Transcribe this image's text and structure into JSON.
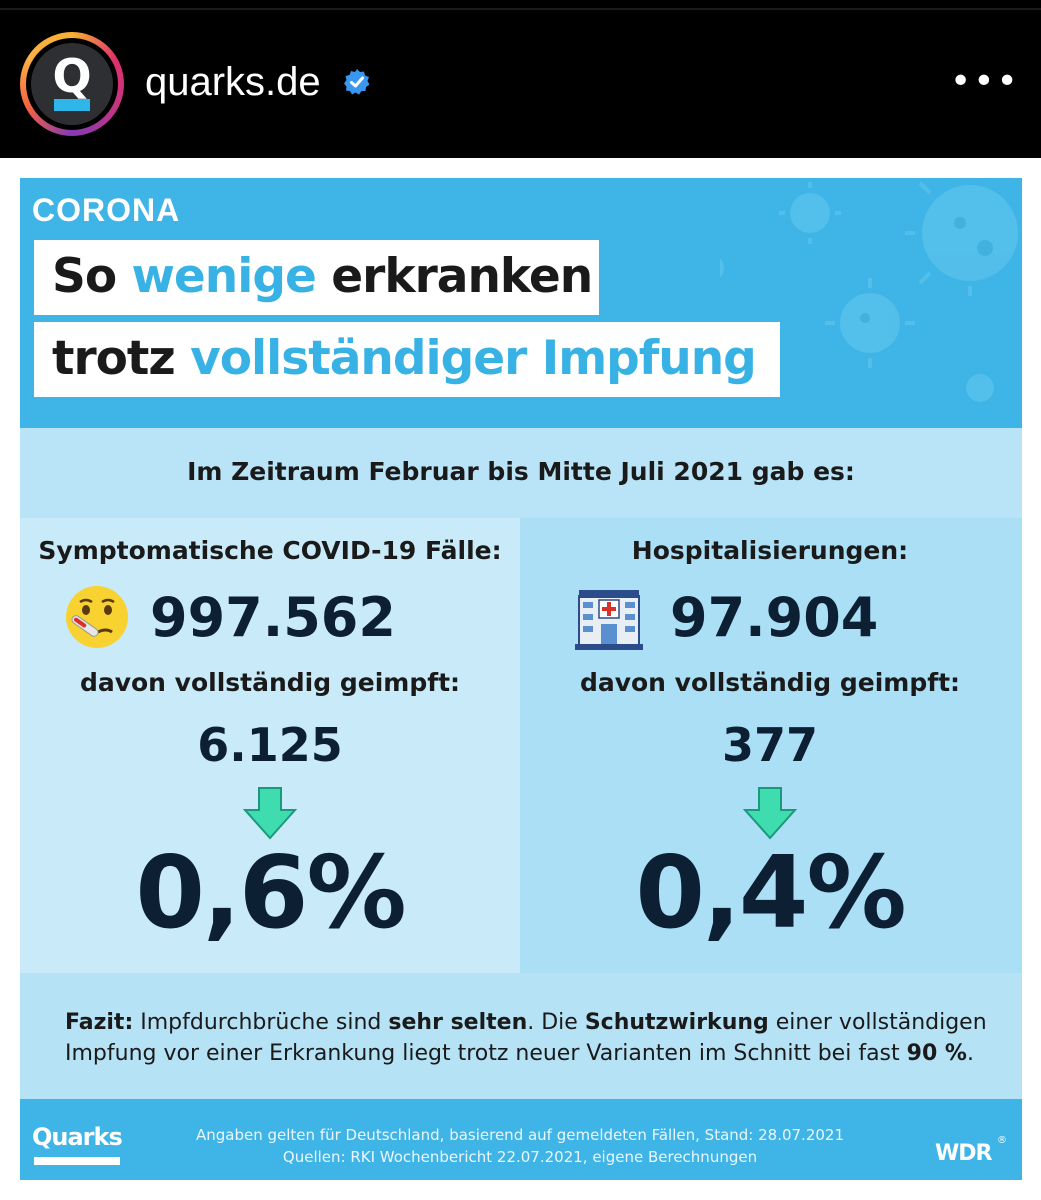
{
  "header": {
    "avatar_letter": "Q",
    "username": "quarks.de",
    "more_icon": "•••"
  },
  "card": {
    "label": "CORONA",
    "title_line1": {
      "a": "So ",
      "b": "wenige",
      "c": " erkranken"
    },
    "title_line2": {
      "a": "trotz ",
      "b": "vollständiger Impfung"
    },
    "period": "Im Zeitraum Februar bis Mitte Juli 2021 gab es:",
    "left": {
      "title": "Symptomatische COVID-19 Fälle:",
      "total": "997.562",
      "sub": "davon vollständig geimpft:",
      "vaccinated": "6.125",
      "percent": "0,6%"
    },
    "right": {
      "title": "Hospitalisierungen:",
      "total": "97.904",
      "sub": "davon vollständig geimpft:",
      "vaccinated": "377",
      "percent": "0,4%"
    },
    "fazit": {
      "label": "Fazit:",
      "t1": " Impfdurchbrüche sind ",
      "b1": "sehr selten",
      "t2": ". Die ",
      "b2": "Schutzwirkung",
      "t3": " einer vollständigen Impfung vor einer Erkrankung liegt trotz neuer Varianten im Schnitt bei fast ",
      "b3": "90 %",
      "t4": "."
    },
    "footer": {
      "logo": "Quarks",
      "line1": "Angaben gelten für Deutschland, basierend auf gemeldeten Fällen, Stand: 28.07.2021",
      "line2": "Quellen:  RKI Wochenbericht 22.07.2021, eigene Berechnungen",
      "wdr": "WDR",
      "wdr_mark": "®"
    }
  },
  "colors": {
    "accent_blue": "#38b2e4",
    "dark_text": "#0d1f33",
    "arrow_green": "#3fdcb0"
  }
}
